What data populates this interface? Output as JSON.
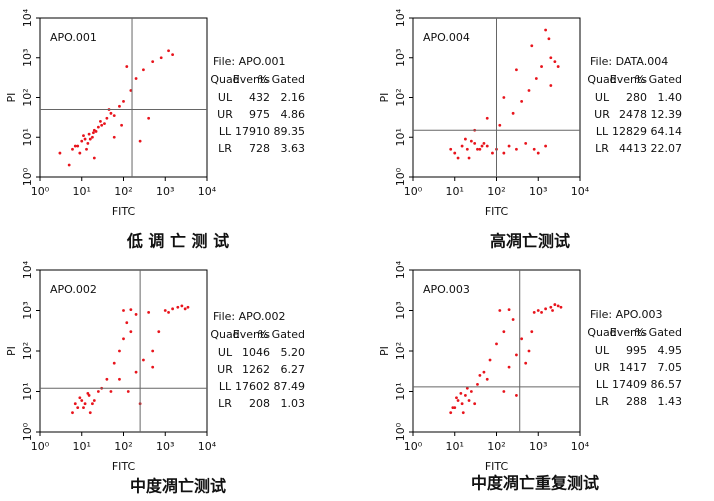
{
  "chart_data": [
    {
      "type": "scatter",
      "title": "APO.001",
      "xlabel": "FITC",
      "ylabel": "PI",
      "xscale": "log",
      "yscale": "log",
      "xlim": [
        1,
        10000
      ],
      "ylim": [
        1,
        10000
      ],
      "xticks": [
        {
          "value": 1,
          "label": "10⁰"
        },
        {
          "value": 10,
          "label": "10¹"
        },
        {
          "value": 100,
          "label": "10²"
        },
        {
          "value": 1000,
          "label": "10³"
        },
        {
          "value": 10000,
          "label": "10⁴"
        }
      ],
      "yticks": [
        {
          "value": 1,
          "label": "10⁰"
        },
        {
          "value": 10,
          "label": "10¹"
        },
        {
          "value": 100,
          "label": "10²"
        },
        {
          "value": 1000,
          "label": "10³"
        },
        {
          "value": 10000,
          "label": "10⁴"
        }
      ],
      "gate_x": 160,
      "gate_y": 50,
      "color": "#e8141c",
      "x": [
        8,
        12,
        15,
        20,
        10,
        6,
        25,
        30,
        18,
        9,
        14,
        22,
        11,
        7,
        16,
        28,
        35,
        13,
        19,
        40,
        50,
        60,
        80,
        100,
        150,
        200,
        300,
        500,
        800,
        1200,
        60,
        90,
        250,
        1500,
        400,
        20,
        5,
        3,
        45,
        120
      ],
      "values": [
        6,
        9,
        12,
        15,
        8,
        5,
        18,
        20,
        10,
        4,
        7,
        14,
        11,
        6,
        9,
        25,
        22,
        5,
        13,
        30,
        40,
        35,
        60,
        80,
        150,
        300,
        500,
        800,
        1000,
        1500,
        10,
        20,
        8,
        1200,
        30,
        3,
        2,
        4,
        50,
        600
      ],
      "caption": "低 调 亡 测 试",
      "table": {
        "file": "File: APO.001",
        "columns": [
          "Quad",
          "Events",
          "% Gated"
        ],
        "rows": [
          [
            "UL",
            "432",
            "2.16"
          ],
          [
            "UR",
            "975",
            "4.86"
          ],
          [
            "LL",
            "17910",
            "89.35"
          ],
          [
            "LR",
            "728",
            "3.63"
          ]
        ]
      }
    },
    {
      "type": "scatter",
      "title": "APO.004",
      "xlabel": "FITC",
      "ylabel": "PI",
      "xscale": "log",
      "yscale": "log",
      "xlim": [
        1,
        10000
      ],
      "ylim": [
        1,
        10000
      ],
      "xticks": [
        {
          "value": 1,
          "label": "10⁰"
        },
        {
          "value": 10,
          "label": "10¹"
        },
        {
          "value": 100,
          "label": "10²"
        },
        {
          "value": 1000,
          "label": "10³"
        },
        {
          "value": 10000,
          "label": "10⁴"
        }
      ],
      "yticks": [
        {
          "value": 1,
          "label": "10⁰"
        },
        {
          "value": 10,
          "label": "10¹"
        },
        {
          "value": 100,
          "label": "10²"
        },
        {
          "value": 1000,
          "label": "10³"
        },
        {
          "value": 10000,
          "label": "10⁴"
        }
      ],
      "gate_x": 100,
      "gate_y": 15,
      "color": "#e8141c",
      "x": [
        10,
        15,
        20,
        30,
        40,
        12,
        25,
        60,
        80,
        18,
        35,
        50,
        8,
        22,
        45,
        100,
        150,
        200,
        300,
        500,
        800,
        1000,
        1500,
        120,
        250,
        400,
        600,
        900,
        1200,
        2000,
        2500,
        1800,
        1500,
        700,
        300,
        150,
        60,
        30,
        2000,
        3000
      ],
      "values": [
        4,
        6,
        5,
        7,
        5,
        3,
        8,
        6,
        4,
        9,
        5,
        7,
        5,
        3,
        6,
        5,
        4,
        6,
        5,
        7,
        5,
        4,
        6,
        20,
        40,
        80,
        150,
        300,
        600,
        1000,
        800,
        3000,
        5000,
        2000,
        500,
        100,
        30,
        15,
        200,
        600
      ],
      "caption": "高凋亡测试",
      "table": {
        "file": "File: DATA.004",
        "columns": [
          "Quad",
          "Events",
          "% Gated"
        ],
        "rows": [
          [
            "UL",
            "280",
            "1.40"
          ],
          [
            "UR",
            "2478",
            "12.39"
          ],
          [
            "LL",
            "12829",
            "64.14"
          ],
          [
            "LR",
            "4413",
            "22.07"
          ]
        ]
      }
    },
    {
      "type": "scatter",
      "title": "APO.002",
      "xlabel": "FITC",
      "ylabel": "PI",
      "xscale": "log",
      "yscale": "log",
      "xlim": [
        1,
        10000
      ],
      "ylim": [
        1,
        10000
      ],
      "xticks": [
        {
          "value": 1,
          "label": "10⁰"
        },
        {
          "value": 10,
          "label": "10¹"
        },
        {
          "value": 100,
          "label": "10²"
        },
        {
          "value": 1000,
          "label": "10³"
        },
        {
          "value": 10000,
          "label": "10⁴"
        }
      ],
      "yticks": [
        {
          "value": 1,
          "label": "10⁰"
        },
        {
          "value": 10,
          "label": "10¹"
        },
        {
          "value": 100,
          "label": "10²"
        },
        {
          "value": 1000,
          "label": "10³"
        },
        {
          "value": 10000,
          "label": "10⁴"
        }
      ],
      "gate_x": 250,
      "gate_y": 12,
      "color": "#e8141c",
      "x": [
        8,
        10,
        12,
        15,
        20,
        6,
        9,
        14,
        18,
        25,
        11,
        7,
        30,
        40,
        16,
        60,
        80,
        100,
        150,
        200,
        300,
        500,
        1000,
        1500,
        2000,
        2500,
        3000,
        1200,
        100,
        150,
        120,
        200,
        80,
        130,
        250,
        500,
        700,
        50,
        400,
        3500
      ],
      "values": [
        4,
        6,
        5,
        8,
        6,
        3,
        7,
        9,
        5,
        10,
        4,
        5,
        12,
        20,
        3,
        50,
        100,
        200,
        300,
        30,
        60,
        40,
        1000,
        1100,
        1200,
        1300,
        1100,
        900,
        1000,
        1050,
        500,
        800,
        20,
        10,
        5,
        100,
        300,
        10,
        900,
        1200
      ],
      "caption": "中度凋亡测试",
      "table": {
        "file": "File: APO.002",
        "columns": [
          "Quad",
          "Events",
          "% Gated"
        ],
        "rows": [
          [
            "UL",
            "1046",
            "5.20"
          ],
          [
            "UR",
            "1262",
            "6.27"
          ],
          [
            "LL",
            "17602",
            "87.49"
          ],
          [
            "LR",
            "208",
            "1.03"
          ]
        ]
      }
    },
    {
      "type": "scatter",
      "title": "APO.003",
      "xlabel": "FITC",
      "ylabel": "PI",
      "xscale": "log",
      "yscale": "log",
      "xlim": [
        1,
        10000
      ],
      "ylim": [
        1,
        10000
      ],
      "xticks": [
        {
          "value": 1,
          "label": "10⁰"
        },
        {
          "value": 10,
          "label": "10¹"
        },
        {
          "value": 100,
          "label": "10²"
        },
        {
          "value": 1000,
          "label": "10³"
        },
        {
          "value": 10000,
          "label": "10⁴"
        }
      ],
      "yticks": [
        {
          "value": 1,
          "label": "10⁰"
        },
        {
          "value": 10,
          "label": "10¹"
        },
        {
          "value": 100,
          "label": "10²"
        },
        {
          "value": 1000,
          "label": "10³"
        },
        {
          "value": 10000,
          "label": "10⁴"
        }
      ],
      "gate_x": 360,
      "gate_y": 13,
      "color": "#e8141c",
      "x": [
        10,
        12,
        15,
        18,
        22,
        8,
        11,
        14,
        25,
        30,
        9,
        20,
        35,
        50,
        16,
        70,
        100,
        150,
        200,
        300,
        600,
        1000,
        1500,
        2000,
        2500,
        3000,
        2200,
        120,
        200,
        250,
        400,
        800,
        60,
        150,
        300,
        700,
        1200,
        40,
        3500,
        500
      ],
      "values": [
        4,
        6,
        5,
        8,
        6,
        3,
        7,
        9,
        10,
        5,
        4,
        12,
        15,
        30,
        3,
        60,
        150,
        300,
        40,
        80,
        100,
        1000,
        1100,
        1200,
        1400,
        1300,
        1000,
        1000,
        1050,
        600,
        200,
        900,
        20,
        10,
        8,
        300,
        900,
        25,
        1200,
        50
      ],
      "caption": "中度凋亡重复测试",
      "table": {
        "file": "File: APO.003",
        "columns": [
          "Quad",
          "Events",
          "% Gated"
        ],
        "rows": [
          [
            "UL",
            "995",
            "4.95"
          ],
          [
            "UR",
            "1417",
            "7.05"
          ],
          [
            "LL",
            "17409",
            "86.57"
          ],
          [
            "LR",
            "288",
            "1.43"
          ]
        ]
      }
    }
  ]
}
